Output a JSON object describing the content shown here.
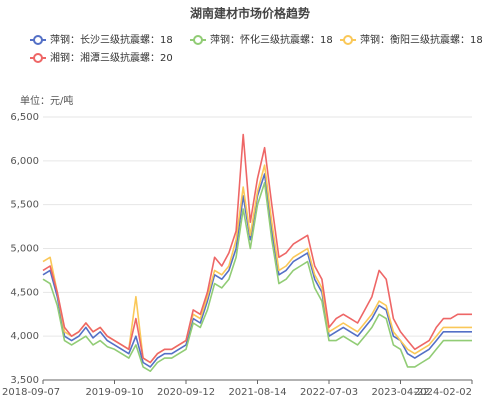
{
  "chart_data": {
    "type": "line",
    "title": "湖南建材市场价格趋势",
    "y_unit_label": "单位：元/吨",
    "categories": [
      "2018-09-07",
      null,
      null,
      null,
      null,
      null,
      null,
      null,
      null,
      null,
      "2019-09-10",
      null,
      null,
      null,
      null,
      null,
      null,
      null,
      null,
      null,
      "2020-09-12",
      null,
      null,
      null,
      null,
      null,
      null,
      null,
      null,
      null,
      "2021-08-14",
      null,
      null,
      null,
      null,
      null,
      null,
      null,
      null,
      null,
      "2022-07-03",
      null,
      null,
      null,
      null,
      null,
      null,
      null,
      null,
      null,
      "2023-04-22",
      null,
      null,
      null,
      null,
      null,
      null,
      null,
      null,
      null,
      "2024-02-02"
    ],
    "series": [
      {
        "name": "萍钢：长沙三级抗震螺：18",
        "color": "#5470c6",
        "values": [
          4700,
          4750,
          4450,
          4000,
          3950,
          4000,
          4100,
          3980,
          4050,
          3950,
          3900,
          3850,
          3800,
          4000,
          3700,
          3650,
          3750,
          3800,
          3800,
          3850,
          3900,
          4200,
          4150,
          4400,
          4700,
          4650,
          4750,
          5000,
          5600,
          5100,
          5600,
          5850,
          5200,
          4700,
          4750,
          4850,
          4900,
          4950,
          4650,
          4500,
          4000,
          4050,
          4100,
          4050,
          4000,
          4100,
          4200,
          4350,
          4300,
          4000,
          3950,
          3800,
          3750,
          3800,
          3850,
          3950,
          4050,
          4050,
          4050,
          4050,
          4050
        ]
      },
      {
        "name": "萍钢：怀化三级抗震螺：18",
        "color": "#91cc75",
        "values": [
          4650,
          4600,
          4350,
          3950,
          3900,
          3950,
          4000,
          3900,
          3950,
          3880,
          3850,
          3800,
          3750,
          3900,
          3650,
          3600,
          3700,
          3750,
          3750,
          3800,
          3850,
          4150,
          4100,
          4300,
          4600,
          4550,
          4650,
          4900,
          5450,
          5000,
          5500,
          5750,
          5100,
          4600,
          4650,
          4750,
          4800,
          4850,
          4550,
          4400,
          3950,
          3950,
          4000,
          3950,
          3900,
          4000,
          4100,
          4250,
          4200,
          3900,
          3850,
          3650,
          3650,
          3700,
          3750,
          3850,
          3950,
          3950,
          3950,
          3950,
          3950
        ]
      },
      {
        "name": "萍钢：衡阳三级抗震螺：18",
        "color": "#fac858",
        "values": [
          4850,
          4900,
          4500,
          4050,
          4000,
          4050,
          4150,
          4050,
          4100,
          4000,
          3950,
          3900,
          3850,
          4450,
          3750,
          3700,
          3800,
          3850,
          3850,
          3900,
          3950,
          4250,
          4200,
          4450,
          4750,
          4700,
          4800,
          5100,
          5700,
          5150,
          5650,
          5950,
          5300,
          4750,
          4800,
          4900,
          4950,
          5000,
          4700,
          4550,
          4050,
          4100,
          4150,
          4100,
          4050,
          4150,
          4250,
          4400,
          4350,
          4050,
          3950,
          3850,
          3800,
          3850,
          3900,
          4000,
          4100,
          4100,
          4100,
          4100,
          4100
        ]
      },
      {
        "name": "湘钢：湘潭三级抗震螺：20",
        "color": "#ee6666",
        "values": [
          4750,
          4800,
          4500,
          4100,
          4000,
          4050,
          4150,
          4050,
          4100,
          4000,
          3950,
          3900,
          3850,
          4200,
          3750,
          3700,
          3800,
          3850,
          3850,
          3900,
          3950,
          4300,
          4250,
          4500,
          4900,
          4800,
          4950,
          5200,
          6300,
          5300,
          5800,
          6150,
          5500,
          4900,
          4950,
          5050,
          5100,
          5150,
          4800,
          4650,
          4100,
          4200,
          4250,
          4200,
          4150,
          4300,
          4450,
          4750,
          4650,
          4200,
          4050,
          3950,
          3850,
          3900,
          3950,
          4100,
          4200,
          4200,
          4250,
          4250,
          4250
        ]
      }
    ],
    "ylim": [
      3500,
      6500
    ],
    "yticks": [
      {
        "value": 3500,
        "label": "3,500"
      },
      {
        "value": 4000,
        "label": "4,000"
      },
      {
        "value": 4500,
        "label": "4,500"
      },
      {
        "value": 5000,
        "label": "5,000"
      },
      {
        "value": 5500,
        "label": "5,500"
      },
      {
        "value": 6000,
        "label": "6,000"
      },
      {
        "value": 6500,
        "label": "6,500"
      }
    ],
    "grid": true
  }
}
